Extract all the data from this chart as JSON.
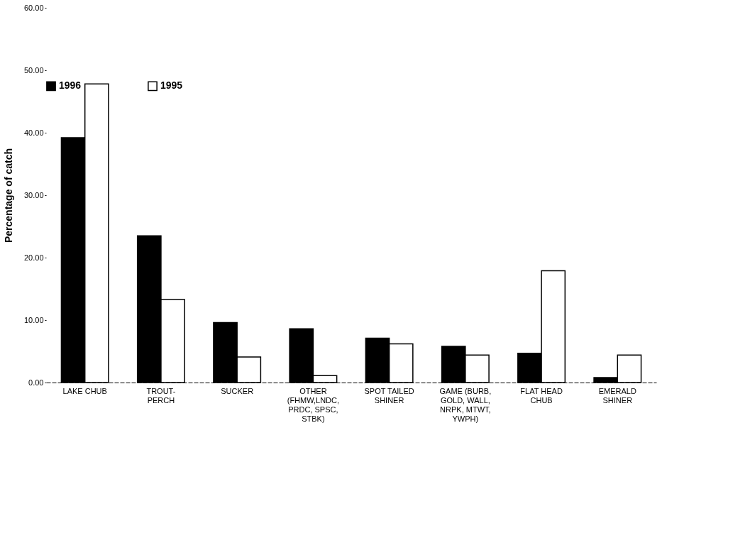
{
  "chart_data": {
    "type": "bar",
    "ylabel": "Percentage of catch",
    "categories": [
      "LAKE CHUB",
      "TROUT-\nPERCH",
      "SUCKER",
      "OTHER\n(FHMW,LNDC,\nPRDC, SPSC,\nSTBK)",
      "SPOT TAILED\nSHINER",
      "GAME (BURB,\nGOLD, WALL,\nNRPK, MTWT,\nYWPH)",
      "FLAT HEAD\nCHUB",
      "EMERALD\nSHINER"
    ],
    "series": [
      {
        "name": "1996",
        "color": "#000000",
        "values": [
          39.2,
          23.5,
          9.6,
          8.6,
          7.1,
          5.8,
          4.7,
          0.8
        ]
      },
      {
        "name": "1995",
        "color": "#ffffff",
        "values": [
          47.8,
          13.3,
          4.1,
          1.1,
          6.2,
          4.4,
          17.9,
          4.4
        ]
      }
    ],
    "ylim": [
      0,
      60
    ],
    "yticks": [
      {
        "value": 0,
        "label": "0.00"
      },
      {
        "value": 10,
        "label": "10.00"
      },
      {
        "value": 20,
        "label": "20.00"
      },
      {
        "value": 30,
        "label": "30.00"
      },
      {
        "value": 40,
        "label": "40.00"
      },
      {
        "value": 50,
        "label": "50.00"
      },
      {
        "value": 60,
        "label": "60.00"
      }
    ],
    "grid": false,
    "legend": "top"
  }
}
